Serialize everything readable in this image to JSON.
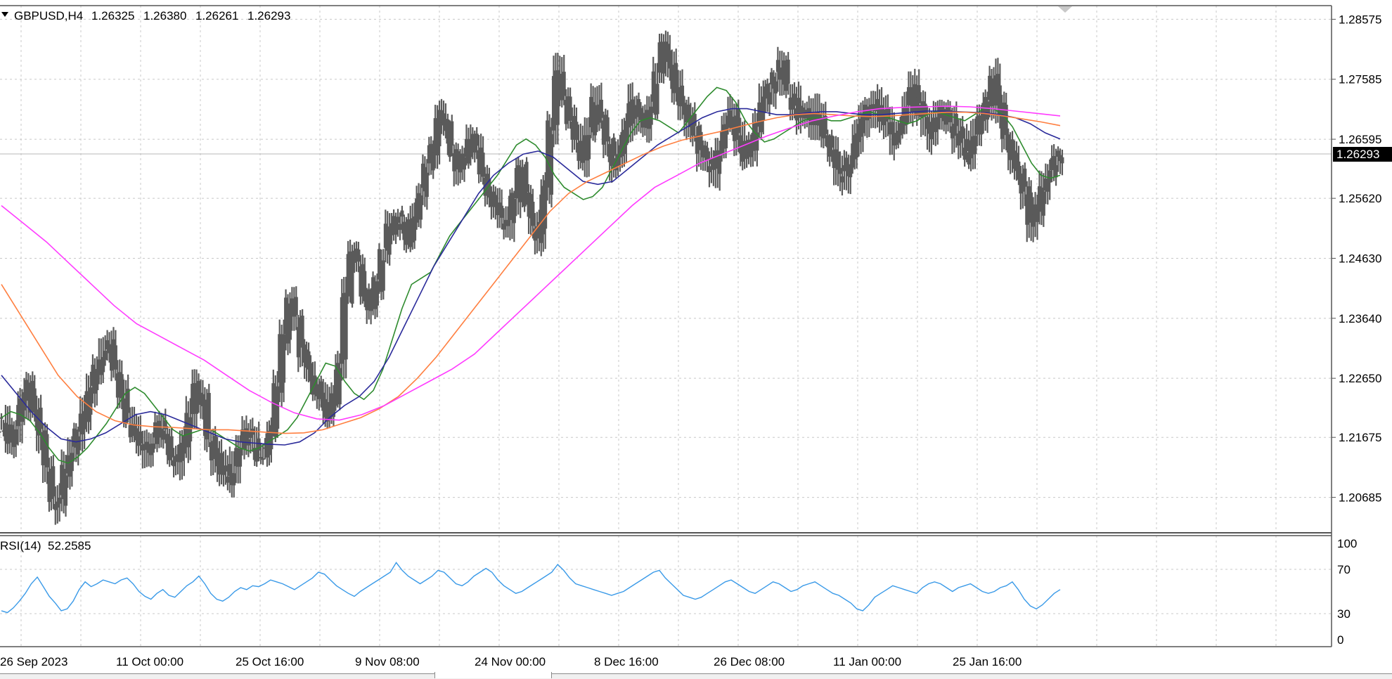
{
  "header": {
    "symbol_tf": "GBPUSD,H4",
    "open": "1.26325",
    "high": "1.26380",
    "low": "1.26261",
    "close": "1.26293"
  },
  "rsi_header": {
    "label": "RSI(14)",
    "value": "52.2585"
  },
  "current_price_label": "1.26293",
  "colors": {
    "candles": "#5a5a5a",
    "ma_fast": "#2e8b2e",
    "ma_mid": "#2a2a9a",
    "ma_slow": "#ff7f40",
    "ma_long": "#ff3cff",
    "rsi": "#3a9ae8",
    "grid": "#c8c8c8",
    "price_tag_bg": "#000000"
  },
  "chart_data": [
    {
      "type": "line",
      "title": "GBPUSD,H4",
      "ylim": [
        1.201,
        1.288
      ],
      "y_ticks": [
        "1.28575",
        "1.27585",
        "1.26595",
        "1.25620",
        "1.24630",
        "1.23640",
        "1.22650",
        "1.21675",
        "1.20685"
      ],
      "x_tick_labels": [
        "26 Sep 2023",
        "11 Oct 00:00",
        "25 Oct 16:00",
        "9 Nov 08:00",
        "24 Nov 00:00",
        "8 Dec 16:00",
        "26 Dec 08:00",
        "11 Jan 00:00",
        "25 Jan 16:00"
      ],
      "grid": true,
      "series": [
        {
          "style": "bars",
          "values": [
            1.219,
            1.216,
            1.2185,
            1.222,
            1.225,
            1.221,
            1.2175,
            1.212,
            1.207,
            1.206,
            1.211,
            1.214,
            1.217,
            1.22,
            1.2245,
            1.228,
            1.2305,
            1.232,
            1.228,
            1.224,
            1.22,
            1.218,
            1.216,
            1.215,
            1.2165,
            1.219,
            1.2175,
            1.214,
            1.213,
            1.216,
            1.22,
            1.225,
            1.223,
            1.217,
            1.214,
            1.211,
            1.21,
            1.212,
            1.215,
            1.217,
            1.216,
            1.214,
            1.214,
            1.218,
            1.225,
            1.233,
            1.239,
            1.236,
            1.231,
            1.228,
            1.225,
            1.223,
            1.22,
            1.223,
            1.229,
            1.24,
            1.247,
            1.245,
            1.24,
            1.238,
            1.242,
            1.247,
            1.251,
            1.253,
            1.252,
            1.249,
            1.253,
            1.257,
            1.261,
            1.264,
            1.27,
            1.268,
            1.264,
            1.261,
            1.263,
            1.266,
            1.264,
            1.26,
            1.257,
            1.255,
            1.253,
            1.252,
            1.256,
            1.261,
            1.256,
            1.252,
            1.25,
            1.258,
            1.268,
            1.277,
            1.273,
            1.269,
            1.266,
            1.263,
            1.267,
            1.272,
            1.269,
            1.265,
            1.262,
            1.264,
            1.268,
            1.272,
            1.27,
            1.268,
            1.271,
            1.276,
            1.281,
            1.278,
            1.274,
            1.271,
            1.269,
            1.267,
            1.264,
            1.262,
            1.261,
            1.264,
            1.268,
            1.27,
            1.266,
            1.263,
            1.265,
            1.268,
            1.272,
            1.274,
            1.276,
            1.278,
            1.274,
            1.272,
            1.27,
            1.269,
            1.271,
            1.269,
            1.266,
            1.264,
            1.261,
            1.26,
            1.262,
            1.266,
            1.269,
            1.271,
            1.272,
            1.27,
            1.268,
            1.266,
            1.268,
            1.271,
            1.274,
            1.271,
            1.269,
            1.267,
            1.269,
            1.271,
            1.269,
            1.267,
            1.265,
            1.263,
            1.266,
            1.269,
            1.272,
            1.276,
            1.271,
            1.266,
            1.263,
            1.26,
            1.257,
            1.252,
            1.254,
            1.258,
            1.26,
            1.262,
            1.263
          ]
        },
        {
          "style": "line",
          "color": "#2e8b2e",
          "values": [
            1.22,
            1.221,
            1.2205,
            1.2195,
            1.2175,
            1.215,
            1.213,
            1.2125,
            1.2135,
            1.215,
            1.217,
            1.219,
            1.2215,
            1.224,
            1.225,
            1.224,
            1.222,
            1.22,
            1.218,
            1.217,
            1.2175,
            1.218,
            1.218,
            1.217,
            1.216,
            1.215,
            1.2145,
            1.215,
            1.216,
            1.217,
            1.218,
            1.22,
            1.223,
            1.226,
            1.229,
            1.2285,
            1.226,
            1.224,
            1.223,
            1.2245,
            1.228,
            1.233,
            1.238,
            1.242,
            1.243,
            1.244,
            1.247,
            1.25,
            1.252,
            1.254,
            1.256,
            1.258,
            1.26,
            1.2625,
            1.265,
            1.266,
            1.265,
            1.263,
            1.26,
            1.258,
            1.257,
            1.256,
            1.2565,
            1.258,
            1.261,
            1.264,
            1.267,
            1.269,
            1.2695,
            1.269,
            1.268,
            1.267,
            1.269,
            1.271,
            1.273,
            1.2745,
            1.274,
            1.272,
            1.269,
            1.267,
            1.2655,
            1.266,
            1.267,
            1.268,
            1.269,
            1.2695,
            1.2695,
            1.269,
            1.269,
            1.2695,
            1.27,
            1.2705,
            1.27,
            1.2695,
            1.269,
            1.2685,
            1.269,
            1.27,
            1.2705,
            1.27,
            1.2695,
            1.269,
            1.27,
            1.271,
            1.271,
            1.27,
            1.268,
            1.265,
            1.262,
            1.26,
            1.2595,
            1.26
          ]
        },
        {
          "style": "line",
          "color": "#2a2a9a",
          "values": [
            1.227,
            1.224,
            1.221,
            1.2185,
            1.2165,
            1.216,
            1.2165,
            1.2175,
            1.219,
            1.2205,
            1.221,
            1.2205,
            1.2195,
            1.2185,
            1.2175,
            1.2165,
            1.216,
            1.2158,
            1.2156,
            1.2155,
            1.216,
            1.2175,
            1.22,
            1.222,
            1.2235,
            1.226,
            1.23,
            1.235,
            1.24,
            1.245,
            1.249,
            1.253,
            1.257,
            1.26,
            1.262,
            1.2635,
            1.264,
            1.263,
            1.261,
            1.259,
            1.2585,
            1.259,
            1.261,
            1.263,
            1.265,
            1.2665,
            1.268,
            1.2695,
            1.2705,
            1.271,
            1.271,
            1.2705,
            1.27,
            1.27,
            1.2703,
            1.2705,
            1.2705,
            1.2702,
            1.27,
            1.27,
            1.2702,
            1.2704,
            1.2706,
            1.2706,
            1.2705,
            1.2704,
            1.2703,
            1.27,
            1.2695,
            1.2685,
            1.267,
            1.266
          ]
        },
        {
          "style": "line",
          "color": "#ff7f40",
          "values": [
            1.242,
            1.237,
            1.232,
            1.227,
            1.2235,
            1.221,
            1.2195,
            1.2188,
            1.2185,
            1.2184,
            1.2182,
            1.218,
            1.218,
            1.2178,
            1.2176,
            1.2174,
            1.2175,
            1.218,
            1.219,
            1.22,
            1.2215,
            1.2235,
            1.2265,
            1.23,
            1.234,
            1.238,
            1.242,
            1.246,
            1.25,
            1.254,
            1.257,
            1.259,
            1.2605,
            1.262,
            1.2635,
            1.2648,
            1.2658,
            1.2665,
            1.2672,
            1.268,
            1.2688,
            1.2695,
            1.27,
            1.2702,
            1.27,
            1.2698,
            1.2697,
            1.2698,
            1.27,
            1.2702,
            1.2704,
            1.2704,
            1.2702,
            1.2698,
            1.2693,
            1.2688,
            1.2682
          ]
        },
        {
          "style": "line",
          "color": "#ff3cff",
          "values": [
            1.255,
            1.252,
            1.249,
            1.2455,
            1.242,
            1.2385,
            1.2355,
            1.2335,
            1.2315,
            1.2295,
            1.227,
            1.2245,
            1.2225,
            1.2208,
            1.2198,
            1.2196,
            1.2205,
            1.222,
            1.224,
            1.226,
            1.228,
            1.2305,
            1.234,
            1.2375,
            1.241,
            1.2445,
            1.248,
            1.2515,
            1.255,
            1.258,
            1.26,
            1.262,
            1.2635,
            1.265,
            1.2665,
            1.2678,
            1.269,
            1.2698,
            1.2705,
            1.271,
            1.2712,
            1.2713,
            1.2714,
            1.2713,
            1.271,
            1.2706,
            1.2702,
            1.2698
          ]
        }
      ]
    },
    {
      "type": "line",
      "title": "RSI(14) 52.2585",
      "ylim": [
        0,
        100
      ],
      "y_ticks": [
        "100",
        "70",
        "30",
        "0"
      ],
      "grid": true,
      "series": [
        {
          "color": "#3a9ae8",
          "values": [
            30,
            28,
            33,
            40,
            48,
            58,
            65,
            55,
            45,
            38,
            30,
            32,
            40,
            52,
            60,
            55,
            58,
            62,
            60,
            58,
            62,
            64,
            58,
            50,
            45,
            42,
            48,
            52,
            46,
            44,
            50,
            56,
            60,
            66,
            58,
            48,
            42,
            40,
            44,
            50,
            54,
            52,
            56,
            55,
            58,
            62,
            60,
            58,
            55,
            52,
            56,
            60,
            64,
            70,
            68,
            62,
            56,
            52,
            48,
            45,
            50,
            54,
            58,
            62,
            66,
            70,
            80,
            72,
            66,
            62,
            58,
            62,
            66,
            72,
            70,
            64,
            58,
            56,
            60,
            66,
            70,
            74,
            70,
            62,
            56,
            52,
            48,
            50,
            54,
            58,
            62,
            66,
            70,
            78,
            72,
            64,
            58,
            56,
            54,
            52,
            50,
            48,
            46,
            48,
            50,
            54,
            58,
            62,
            66,
            70,
            72,
            64,
            58,
            52,
            46,
            44,
            42,
            44,
            48,
            52,
            56,
            60,
            62,
            58,
            54,
            50,
            48,
            52,
            56,
            60,
            58,
            54,
            50,
            52,
            56,
            58,
            60,
            56,
            52,
            48,
            46,
            42,
            38,
            32,
            30,
            36,
            44,
            48,
            52,
            56,
            54,
            52,
            50,
            48,
            54,
            58,
            60,
            58,
            54,
            50,
            54,
            56,
            58,
            54,
            50,
            48,
            50,
            54,
            56,
            60,
            52,
            42,
            35,
            32,
            36,
            42,
            48,
            52
          ]
        }
      ]
    }
  ]
}
